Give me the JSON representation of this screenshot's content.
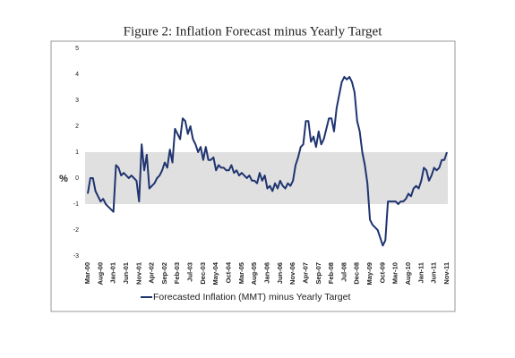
{
  "chart_data": {
    "type": "line",
    "title": "Figure 2: Inflation Forecast minus Yearly Target",
    "ylabel": "%",
    "categories": [
      "Mar-00",
      null,
      null,
      null,
      null,
      "Aug-00",
      null,
      null,
      null,
      null,
      "Jan-01",
      null,
      null,
      null,
      null,
      "Jun-01",
      null,
      null,
      null,
      null,
      "Nov-01",
      null,
      null,
      null,
      null,
      "Apr-02",
      null,
      null,
      null,
      null,
      "Sep-02",
      null,
      null,
      null,
      null,
      "Feb-03",
      null,
      null,
      null,
      null,
      "Jul-03",
      null,
      null,
      null,
      null,
      "Dec-03",
      null,
      null,
      null,
      null,
      "May-04",
      null,
      null,
      null,
      null,
      "Oct-04",
      null,
      null,
      null,
      null,
      "Mar-05",
      null,
      null,
      null,
      null,
      "Aug-05",
      null,
      null,
      null,
      null,
      "Jan-06",
      null,
      null,
      null,
      null,
      "Jun-06",
      null,
      null,
      null,
      null,
      "Nov-06",
      null,
      null,
      null,
      null,
      "Apr-07",
      null,
      null,
      null,
      null,
      "Sep-07",
      null,
      null,
      null,
      null,
      "Feb-08",
      null,
      null,
      null,
      null,
      "Jul-08",
      null,
      null,
      null,
      null,
      "Dec-08",
      null,
      null,
      null,
      null,
      "May-09",
      null,
      null,
      null,
      null,
      "Oct-09",
      null,
      null,
      null,
      null,
      "Mar-10",
      null,
      null,
      null,
      null,
      "Aug-10",
      null,
      null,
      null,
      null,
      "Jan-11",
      null,
      null,
      null,
      null,
      "Jun-11",
      null,
      null,
      null,
      null,
      "Nov-11"
    ],
    "series": [
      {
        "name": "Forecasted Inflation (MMT) minus Yearly Target",
        "color": "#1f3470",
        "values": [
          -0.6,
          0,
          0,
          -0.5,
          -0.7,
          -0.9,
          -0.8,
          -1.0,
          -1.1,
          -1.2,
          -1.3,
          0.5,
          0.4,
          0.1,
          0.2,
          0.1,
          0,
          0.1,
          0,
          -0.1,
          -0.9,
          1.3,
          0.3,
          0.9,
          -0.4,
          -0.3,
          -0.2,
          0,
          0.1,
          0.3,
          0.6,
          0.4,
          1.1,
          0.6,
          1.9,
          1.7,
          1.5,
          2.3,
          2.2,
          1.7,
          2.0,
          1.5,
          1.3,
          1.0,
          1.2,
          0.7,
          1.2,
          0.7,
          0.7,
          0.8,
          0.3,
          0.5,
          0.4,
          0.4,
          0.3,
          0.3,
          0.5,
          0.2,
          0.3,
          0.1,
          0.2,
          0.1,
          0,
          0.1,
          -0.1,
          -0.1,
          -0.2,
          0.2,
          -0.1,
          0.1,
          -0.4,
          -0.3,
          -0.5,
          -0.2,
          -0.4,
          -0.1,
          -0.3,
          -0.4,
          -0.2,
          -0.3,
          -0.1,
          0.5,
          0.8,
          1.2,
          1.3,
          2.2,
          2.2,
          1.4,
          1.6,
          1.2,
          1.8,
          1.3,
          1.5,
          1.9,
          2.3,
          2.3,
          1.8,
          2.7,
          3.2,
          3.7,
          3.9,
          3.8,
          3.9,
          3.7,
          3.3,
          2.2,
          1.8,
          1.0,
          0.5,
          -0.2,
          -1.6,
          -1.8,
          -1.9,
          -2.0,
          -2.3,
          -2.6,
          -2.4,
          -0.9,
          -0.9,
          -0.9,
          -0.9,
          -1.0,
          -0.9,
          -0.9,
          -0.8,
          -0.6,
          -0.7,
          -0.4,
          -0.3,
          -0.4,
          -0.1,
          0.4,
          0.3,
          -0.1,
          0.1,
          0.4,
          0.3,
          0.4,
          0.7,
          0.7,
          1.0
        ]
      }
    ],
    "band": [
      -1,
      1
    ],
    "band_color": "#e0e0e0",
    "ylim": [
      -3,
      5
    ],
    "yticks": [
      5,
      4,
      3,
      2,
      1,
      0,
      -1,
      -2,
      -3
    ]
  }
}
